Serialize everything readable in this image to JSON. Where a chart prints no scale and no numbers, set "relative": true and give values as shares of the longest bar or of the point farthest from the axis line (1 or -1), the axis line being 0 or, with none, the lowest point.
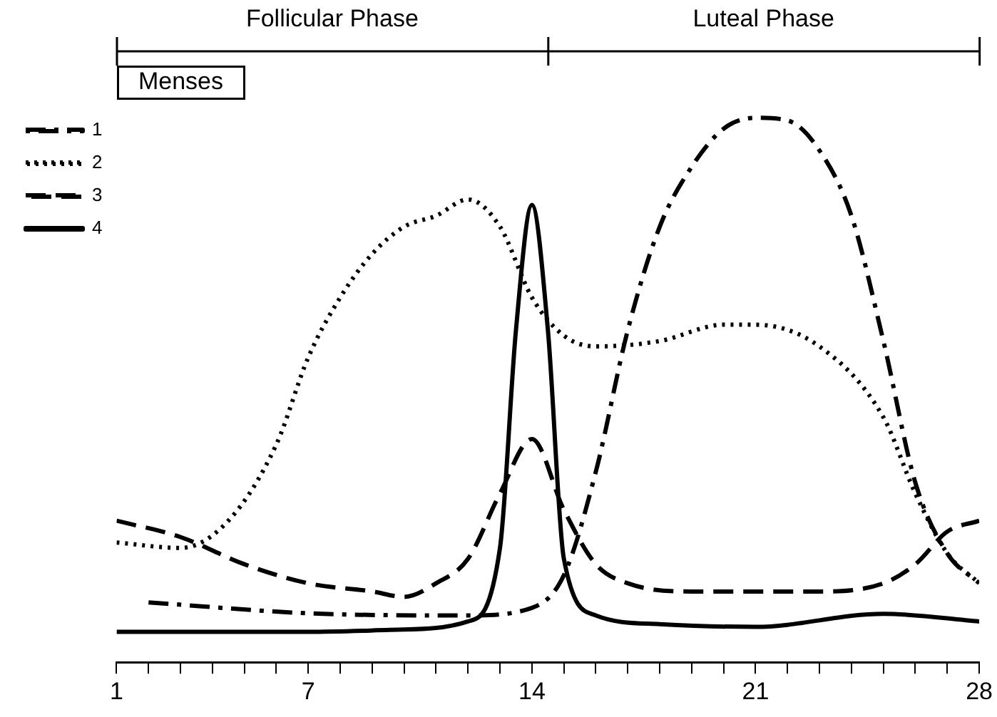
{
  "chart_data": {
    "type": "line",
    "relative": true,
    "legend": "top left",
    "grid": false,
    "marker": "none",
    "xlim": [
      1,
      28
    ],
    "xticks": [
      1,
      {
        "value": 2,
        "label": null
      },
      {
        "value": 3,
        "label": null
      },
      {
        "value": 4,
        "label": null
      },
      {
        "value": 5,
        "label": null
      },
      {
        "value": 6,
        "label": null
      },
      7,
      {
        "value": 8,
        "label": null
      },
      {
        "value": 9,
        "label": null
      },
      {
        "value": 10,
        "label": null
      },
      {
        "value": 11,
        "label": null
      },
      {
        "value": 12,
        "label": null
      },
      {
        "value": 13,
        "label": null
      },
      14,
      {
        "value": 15,
        "label": null
      },
      {
        "value": 16,
        "label": null
      },
      {
        "value": 17,
        "label": null
      },
      {
        "value": 18,
        "label": null
      },
      {
        "value": 19,
        "label": null
      },
      {
        "value": 20,
        "label": null
      },
      21,
      {
        "value": 22,
        "label": null
      },
      {
        "value": 23,
        "label": null
      },
      {
        "value": 24,
        "label": null
      },
      {
        "value": 25,
        "label": null
      },
      {
        "value": 26,
        "label": null
      },
      {
        "value": 27,
        "label": null
      },
      28
    ],
    "annotations": [
      "Follicular Phase",
      "Luteal Phase",
      "Menses"
    ],
    "series": [
      {
        "name": "1",
        "color": "#000000",
        "line_style": "dashdot",
        "x": [
          2,
          7,
          12,
          14,
          15,
          16,
          17,
          18,
          19,
          20,
          21,
          22,
          23,
          24,
          25,
          26,
          27,
          28
        ],
        "values": [
          0.11,
          0.09,
          0.086,
          0.1,
          0.16,
          0.35,
          0.61,
          0.8,
          0.91,
          0.98,
          1,
          0.995,
          0.94,
          0.82,
          0.59,
          0.33,
          0.2,
          0.145
        ]
      },
      {
        "name": "2",
        "color": "#000000",
        "line_style": "dotted",
        "x": [
          1,
          3,
          4.5,
          6,
          7,
          8,
          9,
          10,
          11,
          12,
          13,
          14,
          15,
          16,
          18,
          20,
          21,
          23,
          25,
          26,
          27,
          28
        ],
        "values": [
          0.22,
          0.21,
          0.26,
          0.4,
          0.56,
          0.67,
          0.75,
          0.8,
          0.82,
          0.85,
          0.8,
          0.67,
          0.6,
          0.58,
          0.59,
          0.62,
          0.62,
          0.58,
          0.45,
          0.31,
          0.2,
          0.145
        ]
      },
      {
        "name": "3",
        "color": "#000000",
        "line_style": "dashed",
        "x": [
          1,
          3,
          5,
          7,
          9,
          10,
          11,
          12,
          13,
          14,
          15,
          16,
          17,
          19,
          21,
          23,
          25,
          26,
          27,
          28
        ],
        "values": [
          0.26,
          0.23,
          0.18,
          0.145,
          0.13,
          0.12,
          0.145,
          0.19,
          0.31,
          0.41,
          0.28,
          0.18,
          0.145,
          0.13,
          0.13,
          0.13,
          0.145,
          0.18,
          0.24,
          0.26
        ]
      },
      {
        "name": "4",
        "color": "#000000",
        "line_style": "solid",
        "x": [
          1,
          7,
          10,
          12,
          13,
          13.5,
          14,
          14.5,
          15,
          16,
          18,
          21,
          25,
          28
        ],
        "values": [
          0.056,
          0.056,
          0.06,
          0.075,
          0.21,
          0.61,
          0.84,
          0.61,
          0.19,
          0.086,
          0.07,
          0.065,
          0.089,
          0.075
        ]
      }
    ]
  }
}
